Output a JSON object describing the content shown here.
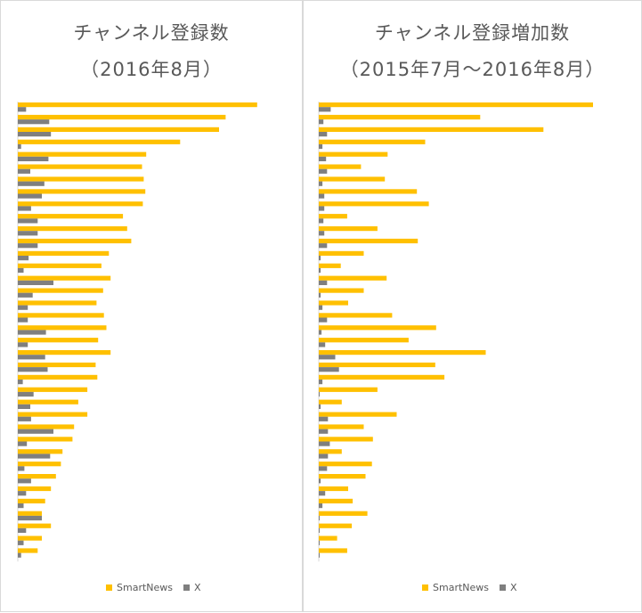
{
  "colors": {
    "smartnews": "#FFC000",
    "x": "#7F7F7F"
  },
  "legend": {
    "smartnews": "SmartNews",
    "x": "X"
  },
  "chart_data": [
    {
      "type": "bar",
      "orientation": "horizontal",
      "title": "チャンネル登録数",
      "subtitle": "（2016年8月）",
      "grid": false,
      "xlim": [
        0,
        300
      ],
      "series": [
        {
          "name": "SmartNews",
          "values": [
            289,
            251,
            243,
            196,
            155,
            150,
            152,
            154,
            151,
            127,
            132,
            137,
            110,
            101,
            112,
            103,
            95,
            104,
            107,
            97,
            112,
            94,
            96,
            84,
            73,
            84,
            68,
            66,
            54,
            52,
            46,
            40,
            33,
            29,
            40,
            29,
            24
          ]
        },
        {
          "name": "X",
          "values": [
            10,
            38,
            40,
            4,
            37,
            15,
            32,
            29,
            16,
            24,
            24,
            24,
            13,
            7,
            43,
            18,
            12,
            12,
            34,
            12,
            33,
            36,
            6,
            19,
            15,
            16,
            43,
            11,
            39,
            8,
            16,
            10,
            7,
            29,
            10,
            7,
            4
          ]
        }
      ]
    },
    {
      "type": "bar",
      "orientation": "horizontal",
      "title": "チャンネル登録増加数",
      "subtitle": "（2015年7月～2016年8月）",
      "grid": false,
      "xlim": [
        0,
        300
      ],
      "series": [
        {
          "name": "SmartNews",
          "values": [
            299,
            176,
            245,
            116,
            75,
            46,
            72,
            107,
            120,
            31,
            64,
            108,
            49,
            24,
            74,
            49,
            32,
            80,
            128,
            98,
            182,
            127,
            137,
            64,
            25,
            85,
            49,
            59,
            25,
            58,
            51,
            32,
            37,
            53,
            36,
            20,
            31
          ]
        },
        {
          "name": "X",
          "values": [
            13,
            5,
            9,
            4,
            8,
            9,
            4,
            6,
            6,
            5,
            6,
            9,
            2,
            2,
            9,
            2,
            4,
            9,
            3,
            7,
            18,
            22,
            4,
            1,
            2,
            10,
            10,
            12,
            10,
            9,
            2,
            7,
            4,
            1,
            1,
            1,
            1
          ]
        }
      ]
    }
  ]
}
